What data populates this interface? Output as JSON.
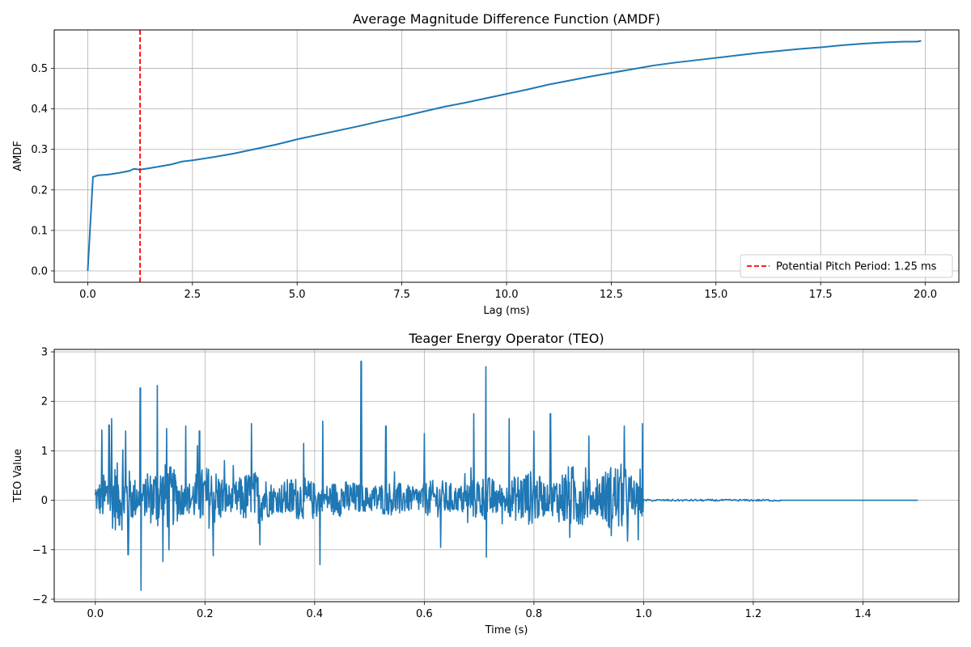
{
  "chart_data": [
    {
      "type": "line",
      "title": "Average Magnitude Difference Function (AMDF)",
      "xlabel": "Lag (ms)",
      "ylabel": "AMDF",
      "xlim": [
        -0.8,
        20.8
      ],
      "ylim": [
        -0.028,
        0.595
      ],
      "xticks": [
        0.0,
        2.5,
        5.0,
        7.5,
        10.0,
        12.5,
        15.0,
        17.5,
        20.0
      ],
      "xtick_labels": [
        "0.0",
        "2.5",
        "5.0",
        "7.5",
        "10.0",
        "12.5",
        "15.0",
        "17.5",
        "20.0"
      ],
      "yticks": [
        0.0,
        0.1,
        0.2,
        0.3,
        0.4,
        0.5
      ],
      "ytick_labels": [
        "0.0",
        "0.1",
        "0.2",
        "0.3",
        "0.4",
        "0.5"
      ],
      "grid": true,
      "legend_position": "bottom-right",
      "series": [
        {
          "color": "#1f77b4",
          "x": [
            0,
            0.125,
            0.25,
            0.5,
            0.75,
            1.0,
            1.1,
            1.25,
            1.5,
            2.0,
            2.25,
            2.5,
            3.0,
            3.5,
            4.0,
            4.5,
            5.0,
            5.5,
            6.0,
            6.5,
            7.0,
            7.5,
            8.0,
            8.5,
            9.0,
            9.5,
            10.0,
            10.5,
            11.0,
            11.5,
            12.0,
            12.5,
            13.0,
            13.5,
            14.0,
            14.5,
            15.0,
            15.5,
            16.0,
            16.5,
            17.0,
            17.5,
            18.0,
            18.5,
            19.0,
            19.5,
            19.8,
            19.9
          ],
          "y": [
            0.0,
            0.232,
            0.236,
            0.238,
            0.242,
            0.247,
            0.252,
            0.25,
            0.254,
            0.263,
            0.27,
            0.273,
            0.281,
            0.29,
            0.301,
            0.312,
            0.325,
            0.336,
            0.347,
            0.358,
            0.37,
            0.381,
            0.393,
            0.405,
            0.415,
            0.426,
            0.437,
            0.448,
            0.46,
            0.47,
            0.48,
            0.489,
            0.498,
            0.507,
            0.514,
            0.52,
            0.526,
            0.532,
            0.538,
            0.543,
            0.548,
            0.552,
            0.557,
            0.561,
            0.564,
            0.566,
            0.566,
            0.568
          ],
          "line_style": "solid"
        }
      ],
      "reference_lines": [
        {
          "x": 1.25,
          "color": "#ff0000",
          "line_style": "dashed",
          "legend_label": "Potential Pitch Period: 1.25 ms"
        }
      ]
    },
    {
      "type": "line",
      "title": "Teager Energy Operator (TEO)",
      "xlabel": "Time (s)",
      "ylabel": "TEO Value",
      "xlim": [
        -0.075,
        1.575
      ],
      "ylim": [
        -2.05,
        3.05
      ],
      "xticks": [
        0.0,
        0.2,
        0.4,
        0.6,
        0.8,
        1.0,
        1.2,
        1.4
      ],
      "xtick_labels": [
        "0.0",
        "0.2",
        "0.4",
        "0.6",
        "0.8",
        "1.0",
        "1.2",
        "1.4"
      ],
      "yticks": [
        -2,
        -1,
        0,
        1,
        2,
        3
      ],
      "ytick_labels": [
        "−2",
        "−1",
        "0",
        "1",
        "2",
        "3"
      ],
      "grid": true,
      "series": [
        {
          "color": "#1f77b4",
          "signal": {
            "active_range": [
              0.0,
              1.0
            ],
            "sample_step": 0.00085,
            "near_zero_range": [
              1.0,
              1.25
            ],
            "flat_range": [
              1.25,
              1.5
            ],
            "value_range": [
              -1.82,
              2.81
            ],
            "spikes": [
              {
                "x": 0.012,
                "y": 1.42
              },
              {
                "x": 0.025,
                "y": 1.52
              },
              {
                "x": 0.03,
                "y": -1.28
              },
              {
                "x": 0.03,
                "y": 1.65
              },
              {
                "x": 0.055,
                "y": 1.4
              },
              {
                "x": 0.06,
                "y": -1.1
              },
              {
                "x": 0.082,
                "y": 2.27
              },
              {
                "x": 0.083,
                "y": -1.82
              },
              {
                "x": 0.113,
                "y": 2.32
              },
              {
                "x": 0.13,
                "y": 1.45
              },
              {
                "x": 0.165,
                "y": 1.5
              },
              {
                "x": 0.19,
                "y": 1.4
              },
              {
                "x": 0.215,
                "y": -1.12
              },
              {
                "x": 0.285,
                "y": 1.55
              },
              {
                "x": 0.3,
                "y": -0.9
              },
              {
                "x": 0.38,
                "y": 1.15
              },
              {
                "x": 0.41,
                "y": -1.3
              },
              {
                "x": 0.415,
                "y": 1.6
              },
              {
                "x": 0.485,
                "y": 2.81
              },
              {
                "x": 0.53,
                "y": 1.5
              },
              {
                "x": 0.6,
                "y": 1.35
              },
              {
                "x": 0.63,
                "y": -0.95
              },
              {
                "x": 0.69,
                "y": 1.75
              },
              {
                "x": 0.712,
                "y": 2.7
              },
              {
                "x": 0.713,
                "y": -1.15
              },
              {
                "x": 0.755,
                "y": 1.65
              },
              {
                "x": 0.8,
                "y": 1.4
              },
              {
                "x": 0.83,
                "y": 1.75
              },
              {
                "x": 0.865,
                "y": -0.75
              },
              {
                "x": 0.9,
                "y": 1.3
              },
              {
                "x": 0.965,
                "y": 1.5
              },
              {
                "x": 0.99,
                "y": -0.8
              },
              {
                "x": 0.998,
                "y": 1.55
              }
            ]
          }
        }
      ]
    }
  ]
}
